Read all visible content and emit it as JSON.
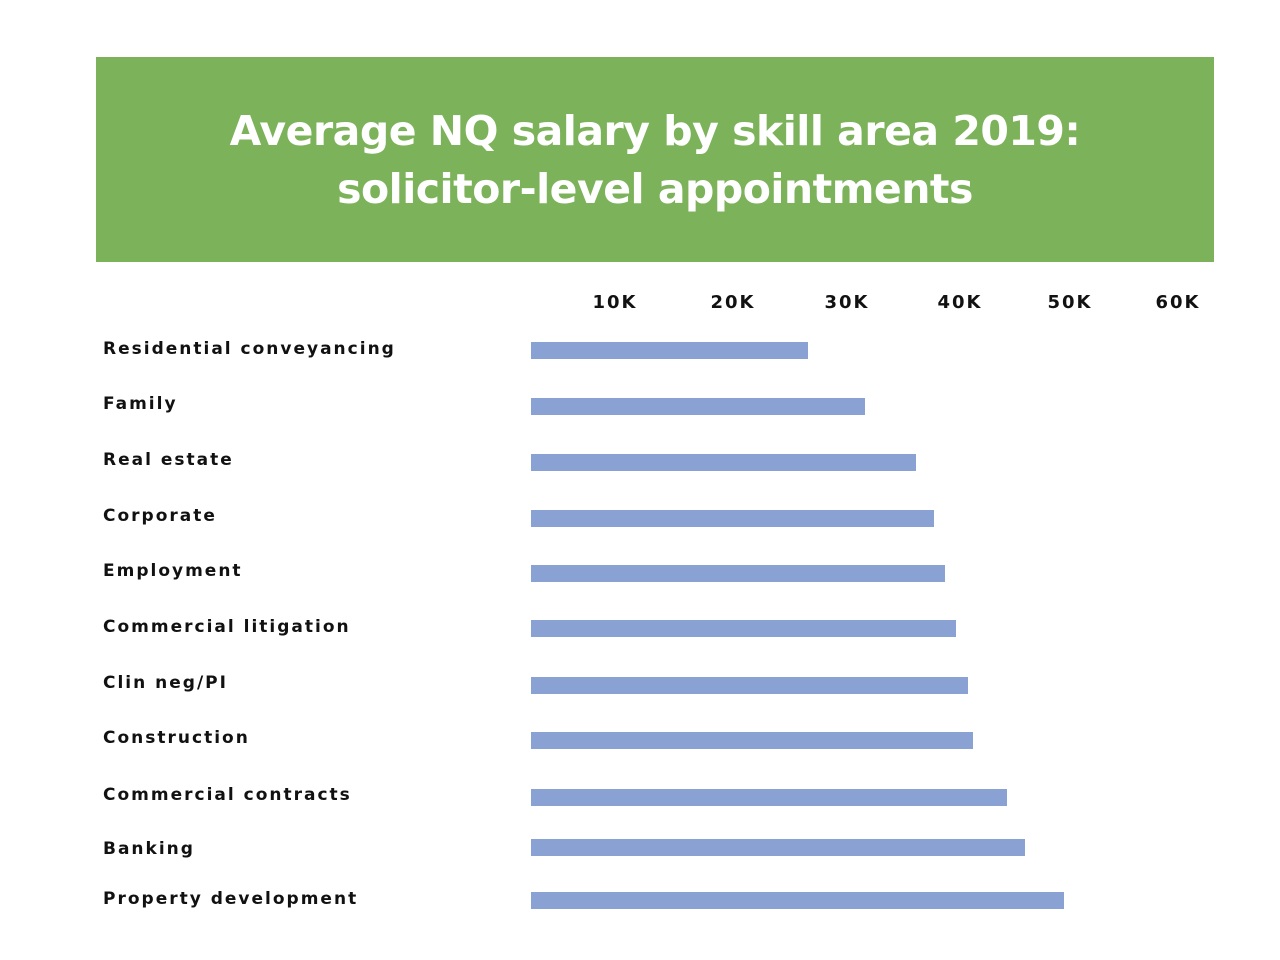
{
  "header": {
    "title_line1": "Average NQ salary by skill area 2019:",
    "title_line2": "solicitor-level appointments",
    "background_color": "#7cb35a"
  },
  "axis": {
    "ticks": [
      "10K",
      "20K",
      "30K",
      "40K",
      "50K",
      "60K"
    ]
  },
  "categories": [
    "Residential conveyancing",
    "Family",
    "Real estate",
    "Corporate",
    "Employment",
    "Commercial litigation",
    "Clin neg/PI",
    "Construction",
    "Commercial contracts",
    "Banking",
    "Property development"
  ],
  "bar_color": "#8aa1d4",
  "chart_data": {
    "type": "bar",
    "orientation": "horizontal",
    "title": "Average NQ salary by skill area 2019: solicitor-level appointments",
    "xlabel": "",
    "ylabel": "",
    "categories": [
      "Residential conveyancing",
      "Family",
      "Real estate",
      "Corporate",
      "Employment",
      "Commercial litigation",
      "Clin neg/PI",
      "Construction",
      "Commercial contracts",
      "Banking",
      "Property development"
    ],
    "values": [
      27000,
      32000,
      36500,
      38000,
      39000,
      40000,
      41000,
      41500,
      44500,
      46000,
      49500
    ],
    "x_ticks": [
      "10K",
      "20K",
      "30K",
      "40K",
      "50K",
      "60K"
    ],
    "xlim": [
      0,
      60000
    ],
    "grid": false,
    "legend": null,
    "bar_color": "#8aa1d4"
  }
}
